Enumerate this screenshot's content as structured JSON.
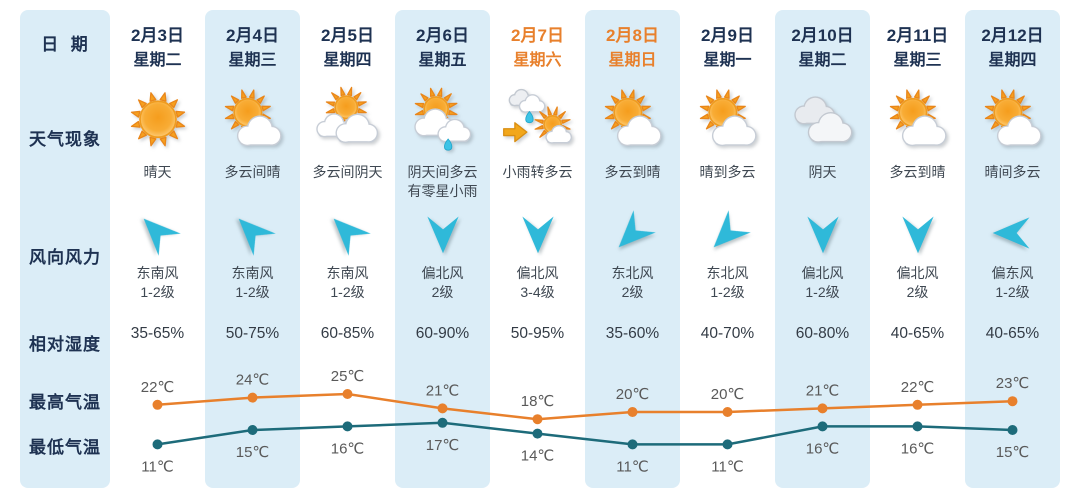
{
  "table": {
    "row_labels": {
      "date": "日  期",
      "weather": "天气现象",
      "wind": "风向风力",
      "humidity": "相对湿度",
      "tmax": "最高气温",
      "tmin": "最低气温"
    },
    "columns": [
      {
        "date": "2月3日",
        "weekday": "星期二",
        "weekend": false,
        "icon": "sunny",
        "weather": "晴天",
        "wind_dir": "东南风",
        "wind_force": "1-2级",
        "wind_from": "southeast",
        "humidity": "35-65%",
        "tmax": 22,
        "tmin": 11
      },
      {
        "date": "2月4日",
        "weekday": "星期三",
        "weekend": false,
        "icon": "mostly-sunny",
        "weather": "多云间晴",
        "wind_dir": "东南风",
        "wind_force": "1-2级",
        "wind_from": "southeast",
        "humidity": "50-75%",
        "tmax": 24,
        "tmin": 15
      },
      {
        "date": "2月5日",
        "weekday": "星期四",
        "weekend": false,
        "icon": "cloudy",
        "weather": "多云间阴天",
        "wind_dir": "东南风",
        "wind_force": "1-2级",
        "wind_from": "southeast",
        "humidity": "60-85%",
        "tmax": 25,
        "tmin": 16
      },
      {
        "date": "2月6日",
        "weekday": "星期五",
        "weekend": false,
        "icon": "overcast-rain",
        "weather": "阴天间多云\n有零星小雨",
        "wind_dir": "偏北风",
        "wind_force": "2级",
        "wind_from": "north",
        "humidity": "60-90%",
        "tmax": 21,
        "tmin": 17
      },
      {
        "date": "2月7日",
        "weekday": "星期六",
        "weekend": true,
        "icon": "rain-to-cloudy",
        "weather": "小雨转多云",
        "wind_dir": "偏北风",
        "wind_force": "3-4级",
        "wind_from": "north",
        "humidity": "50-95%",
        "tmax": 18,
        "tmin": 14
      },
      {
        "date": "2月8日",
        "weekday": "星期日",
        "weekend": true,
        "icon": "mostly-sunny",
        "weather": "多云到晴",
        "wind_dir": "东北风",
        "wind_force": "2级",
        "wind_from": "northeast",
        "humidity": "35-60%",
        "tmax": 20,
        "tmin": 11
      },
      {
        "date": "2月9日",
        "weekday": "星期一",
        "weekend": false,
        "icon": "mostly-sunny",
        "weather": "晴到多云",
        "wind_dir": "东北风",
        "wind_force": "1-2级",
        "wind_from": "northeast",
        "humidity": "40-70%",
        "tmax": 20,
        "tmin": 11
      },
      {
        "date": "2月10日",
        "weekday": "星期二",
        "weekend": false,
        "icon": "overcast",
        "weather": "阴天",
        "wind_dir": "偏北风",
        "wind_force": "1-2级",
        "wind_from": "north",
        "humidity": "60-80%",
        "tmax": 21,
        "tmin": 16
      },
      {
        "date": "2月11日",
        "weekday": "星期三",
        "weekend": false,
        "icon": "mostly-sunny",
        "weather": "多云到晴",
        "wind_dir": "偏北风",
        "wind_force": "2级",
        "wind_from": "north",
        "humidity": "40-65%",
        "tmax": 22,
        "tmin": 16
      },
      {
        "date": "2月12日",
        "weekday": "星期四",
        "weekend": false,
        "icon": "mostly-sunny",
        "weather": "晴间多云",
        "wind_dir": "偏东风",
        "wind_force": "1-2级",
        "wind_from": "east",
        "humidity": "40-65%",
        "tmax": 23,
        "tmin": 15
      }
    ]
  },
  "colors": {
    "band_blue": "#DBEDF7",
    "navy_text": "#1E3252",
    "weekend_orange": "#E8802C",
    "tmax_line": "#E8802C",
    "tmin_line": "#1D6B7A",
    "wind_arrow_cyan": "#2FB9D9",
    "sun_orange": "#F6A01E",
    "value_gray": "#595959"
  },
  "chart_data": {
    "type": "line",
    "unit": "℃",
    "categories": [
      "2月3日",
      "2月4日",
      "2月5日",
      "2月6日",
      "2月7日",
      "2月8日",
      "2月9日",
      "2月10日",
      "2月11日",
      "2月12日"
    ],
    "series": [
      {
        "key": "tmax",
        "name": "最高气温",
        "color": "#E8802C",
        "values": [
          22,
          24,
          25,
          21,
          18,
          20,
          20,
          21,
          22,
          23
        ]
      },
      {
        "key": "tmin",
        "name": "最低气温",
        "color": "#1D6B7A",
        "values": [
          11,
          15,
          16,
          17,
          14,
          11,
          11,
          16,
          16,
          15
        ]
      }
    ],
    "ylim": [
      9,
      27
    ],
    "grid": false,
    "legend_position": "left-row-labels",
    "point_labels": "shown"
  }
}
